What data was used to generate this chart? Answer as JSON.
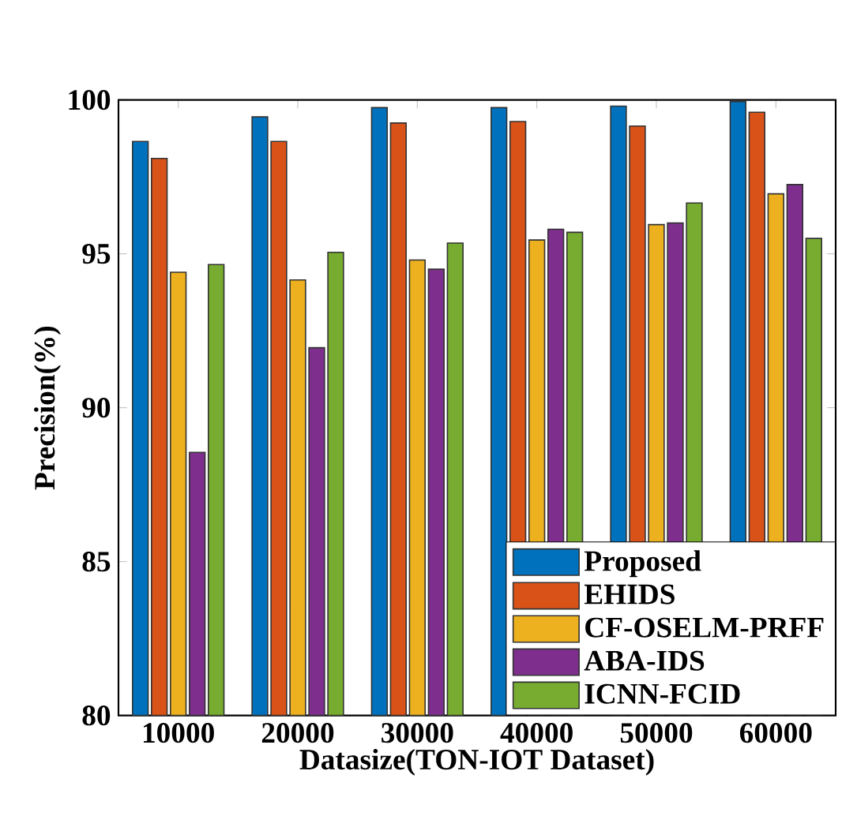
{
  "chart_data": {
    "type": "bar",
    "xlabel": "Datasize(TON-IOT Dataset)",
    "ylabel": "Precision(%)",
    "categories": [
      "10000",
      "20000",
      "30000",
      "40000",
      "50000",
      "60000"
    ],
    "series": [
      {
        "name": "Proposed",
        "color": "#0072bd",
        "values": [
          98.65,
          99.45,
          99.75,
          99.75,
          99.8,
          99.95
        ]
      },
      {
        "name": "EHIDS",
        "color": "#d95319",
        "values": [
          98.1,
          98.65,
          99.25,
          99.3,
          99.15,
          99.6
        ]
      },
      {
        "name": "CF-OSELM-PRFF",
        "color": "#edb120",
        "values": [
          94.4,
          94.15,
          94.8,
          95.45,
          95.95,
          96.95
        ]
      },
      {
        "name": "ABA-IDS",
        "color": "#7e2f8e",
        "values": [
          88.55,
          91.95,
          94.5,
          95.8,
          96.0,
          97.25
        ]
      },
      {
        "name": "ICNN-FCID",
        "color": "#77ac30",
        "values": [
          94.65,
          95.05,
          95.35,
          95.7,
          96.65,
          95.5
        ]
      }
    ],
    "ylim": [
      80,
      100
    ],
    "yticks": [
      80,
      85,
      90,
      95,
      100
    ],
    "legend": "bottom right",
    "grid": false
  }
}
